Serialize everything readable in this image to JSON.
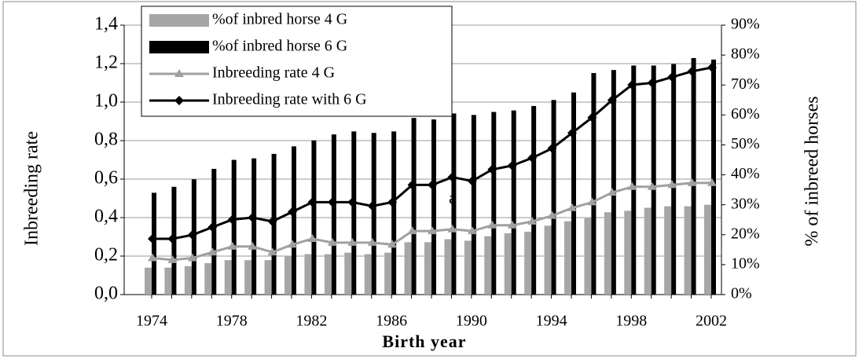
{
  "chart_data": {
    "type": "bar",
    "xlabel": "Birth year",
    "ylabel": "Inbreeding rate",
    "y2label": "% of inbreed horses",
    "annotation": "a",
    "categories": [
      "1974",
      null,
      null,
      null,
      "1978",
      null,
      null,
      null,
      "1982",
      null,
      null,
      null,
      "1986",
      null,
      null,
      null,
      "1990",
      null,
      null,
      null,
      "1994",
      null,
      null,
      null,
      "1998",
      null,
      null,
      null,
      "2002"
    ],
    "series": [
      {
        "name": "%of inbred horse 4 G",
        "type": "bar",
        "axis": "y2",
        "color": "#a6a6a6",
        "values": [
          9,
          9,
          9.5,
          10.5,
          11.5,
          11.5,
          11.5,
          13,
          13.5,
          13.5,
          14,
          13.5,
          14,
          17.5,
          17.5,
          18.5,
          18,
          19.5,
          20.5,
          21,
          23,
          24.5,
          25.5,
          27.5,
          28,
          29,
          29.5,
          29.5,
          30
        ]
      },
      {
        "name": "%of inbred horse 6 G",
        "type": "bar",
        "axis": "y2",
        "color": "#000000",
        "values": [
          34,
          36,
          38.5,
          42,
          45,
          45.5,
          47,
          49.5,
          51.5,
          53.5,
          54.5,
          54,
          54.5,
          59,
          58.5,
          60.5,
          60,
          61,
          61.5,
          63,
          65,
          67.5,
          74,
          75,
          76.5,
          76.5,
          77,
          79,
          78.5
        ]
      },
      {
        "name": "Inbreeding rate 4 G",
        "type": "line",
        "marker": "triangle",
        "color": "#a0a0a0",
        "values": [
          0.19,
          0.18,
          0.19,
          0.22,
          0.25,
          0.25,
          0.22,
          0.26,
          0.29,
          0.27,
          0.27,
          0.27,
          0.26,
          0.33,
          0.33,
          0.34,
          0.33,
          0.36,
          0.36,
          0.38,
          0.41,
          0.45,
          0.48,
          0.53,
          0.56,
          0.56,
          0.57,
          0.58,
          0.58
        ]
      },
      {
        "name": "Inbreeding rate with 6 G",
        "type": "line",
        "marker": "diamond",
        "color": "#000000",
        "values": [
          0.29,
          0.29,
          0.31,
          0.35,
          0.39,
          0.4,
          0.38,
          0.43,
          0.48,
          0.48,
          0.48,
          0.46,
          0.48,
          0.57,
          0.57,
          0.61,
          0.59,
          0.65,
          0.67,
          0.71,
          0.76,
          0.84,
          0.92,
          1.01,
          1.09,
          1.1,
          1.13,
          1.16,
          1.18
        ]
      }
    ],
    "ylim": [
      0,
      1.4
    ],
    "yticks": [
      {
        "value": 0,
        "label": "0,0"
      },
      {
        "value": 0.2,
        "label": "0,2"
      },
      {
        "value": 0.4,
        "label": "0,4"
      },
      {
        "value": 0.6,
        "label": "0,6"
      },
      {
        "value": 0.8,
        "label": "0,8"
      },
      {
        "value": 1.0,
        "label": "1,0"
      },
      {
        "value": 1.2,
        "label": "1,2"
      },
      {
        "value": 1.4,
        "label": "1,4"
      }
    ],
    "y2lim": [
      0,
      90
    ],
    "y2ticks": [
      {
        "value": 0,
        "label": "0%"
      },
      {
        "value": 10,
        "label": "10%"
      },
      {
        "value": 20,
        "label": "20%"
      },
      {
        "value": 30,
        "label": "30%"
      },
      {
        "value": 40,
        "label": "40%"
      },
      {
        "value": 50,
        "label": "50%"
      },
      {
        "value": 60,
        "label": "60%"
      },
      {
        "value": 70,
        "label": "70%"
      },
      {
        "value": 80,
        "label": "80%"
      },
      {
        "value": 90,
        "label": "90%"
      }
    ],
    "grid": true,
    "legend": "upper left"
  }
}
